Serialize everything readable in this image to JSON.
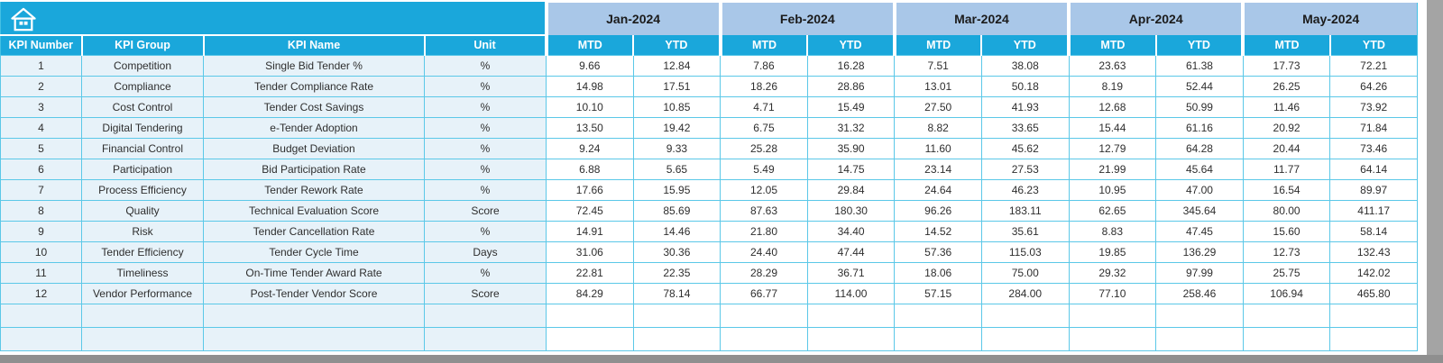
{
  "header": {
    "home_icon": "home-icon",
    "left_columns": [
      "KPI Number",
      "KPI Group",
      "KPI Name",
      "Unit"
    ],
    "months": [
      "Jan-2024",
      "Feb-2024",
      "Mar-2024",
      "Apr-2024",
      "May-2024"
    ],
    "sub_columns": [
      "MTD",
      "YTD"
    ],
    "colors": {
      "band": "#1AA7DB",
      "month_bg": "#A9C7E8",
      "band_text": "#FFFFFF",
      "month_text": "#1B1B1B"
    }
  },
  "table": {
    "colors": {
      "left_cell_bg": "#E7F2F9",
      "value_cell_bg": "#FFFFFF",
      "grid": "#5BC8E8"
    },
    "empty_rows": 2,
    "rows": [
      {
        "number": "1",
        "group": "Competition",
        "name": "Single Bid Tender %",
        "unit": "%",
        "values": [
          "9.66",
          "12.84",
          "7.86",
          "16.28",
          "7.51",
          "38.08",
          "23.63",
          "61.38",
          "17.73",
          "72.21"
        ]
      },
      {
        "number": "2",
        "group": "Compliance",
        "name": "Tender Compliance Rate",
        "unit": "%",
        "values": [
          "14.98",
          "17.51",
          "18.26",
          "28.86",
          "13.01",
          "50.18",
          "8.19",
          "52.44",
          "26.25",
          "64.26"
        ]
      },
      {
        "number": "3",
        "group": "Cost Control",
        "name": "Tender Cost Savings",
        "unit": "%",
        "values": [
          "10.10",
          "10.85",
          "4.71",
          "15.49",
          "27.50",
          "41.93",
          "12.68",
          "50.99",
          "11.46",
          "73.92"
        ]
      },
      {
        "number": "4",
        "group": "Digital Tendering",
        "name": "e-Tender Adoption",
        "unit": "%",
        "values": [
          "13.50",
          "19.42",
          "6.75",
          "31.32",
          "8.82",
          "33.65",
          "15.44",
          "61.16",
          "20.92",
          "71.84"
        ]
      },
      {
        "number": "5",
        "group": "Financial Control",
        "name": "Budget Deviation",
        "unit": "%",
        "values": [
          "9.24",
          "9.33",
          "25.28",
          "35.90",
          "11.60",
          "45.62",
          "12.79",
          "64.28",
          "20.44",
          "73.46"
        ]
      },
      {
        "number": "6",
        "group": "Participation",
        "name": "Bid Participation Rate",
        "unit": "%",
        "values": [
          "6.88",
          "5.65",
          "5.49",
          "14.75",
          "23.14",
          "27.53",
          "21.99",
          "45.64",
          "11.77",
          "64.14"
        ]
      },
      {
        "number": "7",
        "group": "Process Efficiency",
        "name": "Tender Rework Rate",
        "unit": "%",
        "values": [
          "17.66",
          "15.95",
          "12.05",
          "29.84",
          "24.64",
          "46.23",
          "10.95",
          "47.00",
          "16.54",
          "89.97"
        ]
      },
      {
        "number": "8",
        "group": "Quality",
        "name": "Technical Evaluation Score",
        "unit": "Score",
        "values": [
          "72.45",
          "85.69",
          "87.63",
          "180.30",
          "96.26",
          "183.11",
          "62.65",
          "345.64",
          "80.00",
          "411.17"
        ]
      },
      {
        "number": "9",
        "group": "Risk",
        "name": "Tender Cancellation Rate",
        "unit": "%",
        "values": [
          "14.91",
          "14.46",
          "21.80",
          "34.40",
          "14.52",
          "35.61",
          "8.83",
          "47.45",
          "15.60",
          "58.14"
        ]
      },
      {
        "number": "10",
        "group": "Tender Efficiency",
        "name": "Tender Cycle Time",
        "unit": "Days",
        "values": [
          "31.06",
          "30.36",
          "24.40",
          "47.44",
          "57.36",
          "115.03",
          "19.85",
          "136.29",
          "12.73",
          "132.43"
        ]
      },
      {
        "number": "11",
        "group": "Timeliness",
        "name": "On-Time Tender Award Rate",
        "unit": "%",
        "values": [
          "22.81",
          "22.35",
          "28.29",
          "36.71",
          "18.06",
          "75.00",
          "29.32",
          "97.99",
          "25.75",
          "142.02"
        ]
      },
      {
        "number": "12",
        "group": "Vendor Performance",
        "name": "Post-Tender Vendor Score",
        "unit": "Score",
        "values": [
          "84.29",
          "78.14",
          "66.77",
          "114.00",
          "57.15",
          "284.00",
          "77.10",
          "258.46",
          "106.94",
          "465.80"
        ]
      }
    ]
  }
}
